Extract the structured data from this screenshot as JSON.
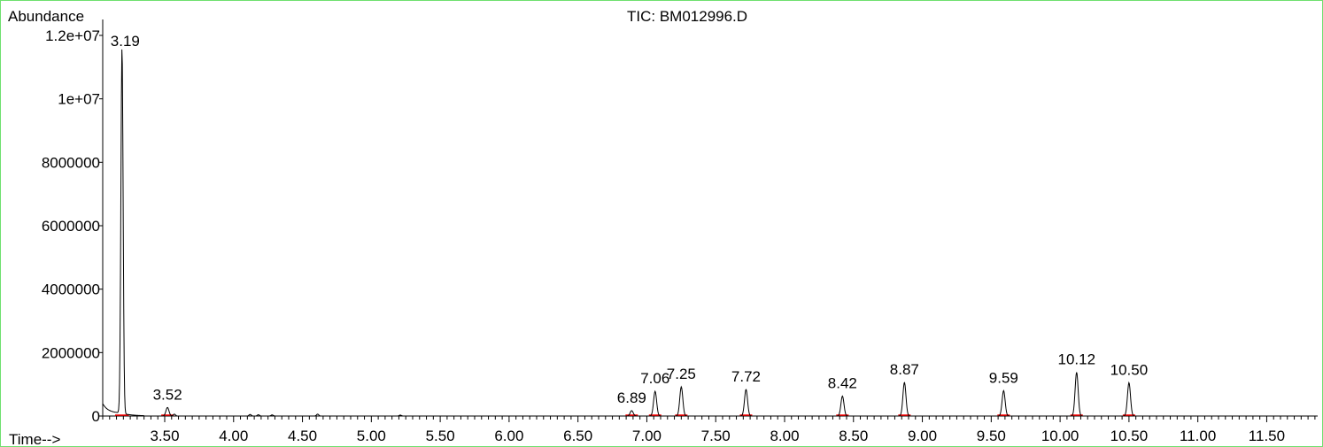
{
  "chart_data": {
    "type": "line",
    "title": "TIC: BM012996.D",
    "ylabel": "Abundance",
    "xlabel": "Time-->",
    "xlim": [
      3.05,
      11.87
    ],
    "ylim": [
      0,
      12000000
    ],
    "x_ticks": [
      "3.50",
      "4.00",
      "4.50",
      "5.00",
      "5.50",
      "6.00",
      "6.50",
      "7.00",
      "7.50",
      "8.00",
      "8.50",
      "9.00",
      "9.50",
      "10.00",
      "10.50",
      "11.00",
      "11.50"
    ],
    "y_ticks": [
      "0",
      "2000000",
      "4000000",
      "6000000",
      "8000000",
      "1e+07",
      "1.2e+07"
    ],
    "peaks": [
      {
        "label": "3.19",
        "rt": 3.19,
        "height": 11550000
      },
      {
        "label": "3.52",
        "rt": 3.52,
        "height": 270000
      },
      {
        "label": "6.89",
        "rt": 6.89,
        "height": 170000
      },
      {
        "label": "7.06",
        "rt": 7.06,
        "height": 780000
      },
      {
        "label": "7.25",
        "rt": 7.25,
        "height": 920000
      },
      {
        "label": "7.72",
        "rt": 7.72,
        "height": 840000
      },
      {
        "label": "8.42",
        "rt": 8.42,
        "height": 630000
      },
      {
        "label": "8.87",
        "rt": 8.87,
        "height": 1060000
      },
      {
        "label": "9.59",
        "rt": 9.59,
        "height": 800000
      },
      {
        "label": "10.12",
        "rt": 10.12,
        "height": 1380000
      },
      {
        "label": "10.50",
        "rt": 10.5,
        "height": 1050000
      }
    ],
    "minor_peaks": [
      {
        "rt": 3.57,
        "height": 60000
      },
      {
        "rt": 4.12,
        "height": 50000
      },
      {
        "rt": 4.18,
        "height": 40000
      },
      {
        "rt": 4.28,
        "height": 35000
      },
      {
        "rt": 4.61,
        "height": 60000
      },
      {
        "rt": 5.21,
        "height": 30000
      }
    ],
    "colors": {
      "trace": "#000000",
      "baseline": "#ff0000",
      "frame": "#6fe06f"
    }
  }
}
